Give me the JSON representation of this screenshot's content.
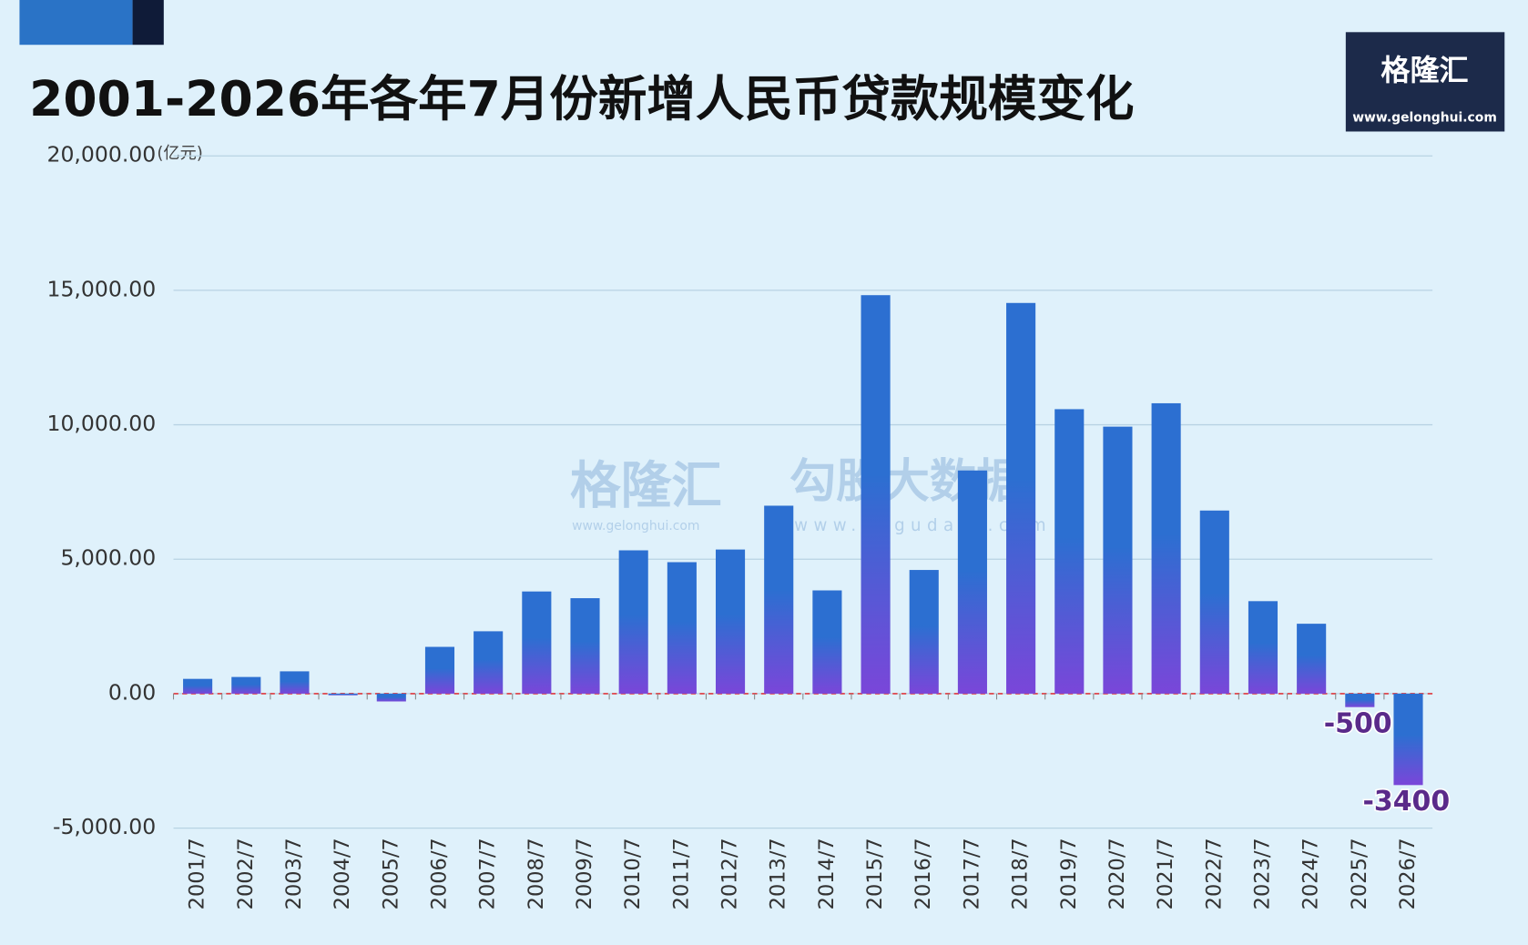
{
  "chart_data": {
    "type": "bar",
    "title": "2001-2026年各年7月份新增人民币贷款规模变化",
    "y_unit": "(亿元)",
    "categories": [
      "2001/7",
      "2002/7",
      "2003/7",
      "2004/7",
      "2005/7",
      "2006/7",
      "2007/7",
      "2008/7",
      "2009/7",
      "2010/7",
      "2011/7",
      "2012/7",
      "2013/7",
      "2014/7",
      "2015/7",
      "2016/7",
      "2017/7",
      "2018/7",
      "2019/7",
      "2020/7",
      "2021/7",
      "2022/7",
      "2023/7",
      "2024/7",
      "2025/7",
      "2026/7"
    ],
    "values": [
      550,
      620,
      830,
      -60,
      -290,
      1740,
      2320,
      3800,
      3550,
      5330,
      4890,
      5360,
      6990,
      3840,
      14820,
      4600,
      8300,
      14530,
      10580,
      9930,
      10800,
      6810,
      3440,
      2600,
      -500,
      -3400
    ],
    "value_labels": [
      null,
      null,
      null,
      null,
      null,
      null,
      null,
      null,
      null,
      null,
      null,
      null,
      null,
      null,
      null,
      null,
      null,
      null,
      null,
      null,
      null,
      null,
      null,
      null,
      "-500",
      "-3400"
    ],
    "color": "#2c6fd1",
    "color_bottom": "#7a46d9",
    "label_color": "#5a2a8a",
    "ylim": [
      -5000,
      20000
    ],
    "yticks": [
      {
        "value": -5000,
        "label": "-5,000.00"
      },
      {
        "value": 0,
        "label": "0.00"
      },
      {
        "value": 5000,
        "label": "5,000.00"
      },
      {
        "value": 10000,
        "label": "10,000.00"
      },
      {
        "value": 15000,
        "label": "15,000.00"
      },
      {
        "value": 20000,
        "label": "20,000.00"
      }
    ],
    "grid": true,
    "zero_line_color": "#e0393e"
  },
  "branding": {
    "logo_name": "格隆汇",
    "logo_url": "www.gelonghui.com",
    "watermark": [
      "格隆汇",
      "www.gelonghui.com",
      "勾股大数据",
      "www.gogudata.com"
    ]
  }
}
